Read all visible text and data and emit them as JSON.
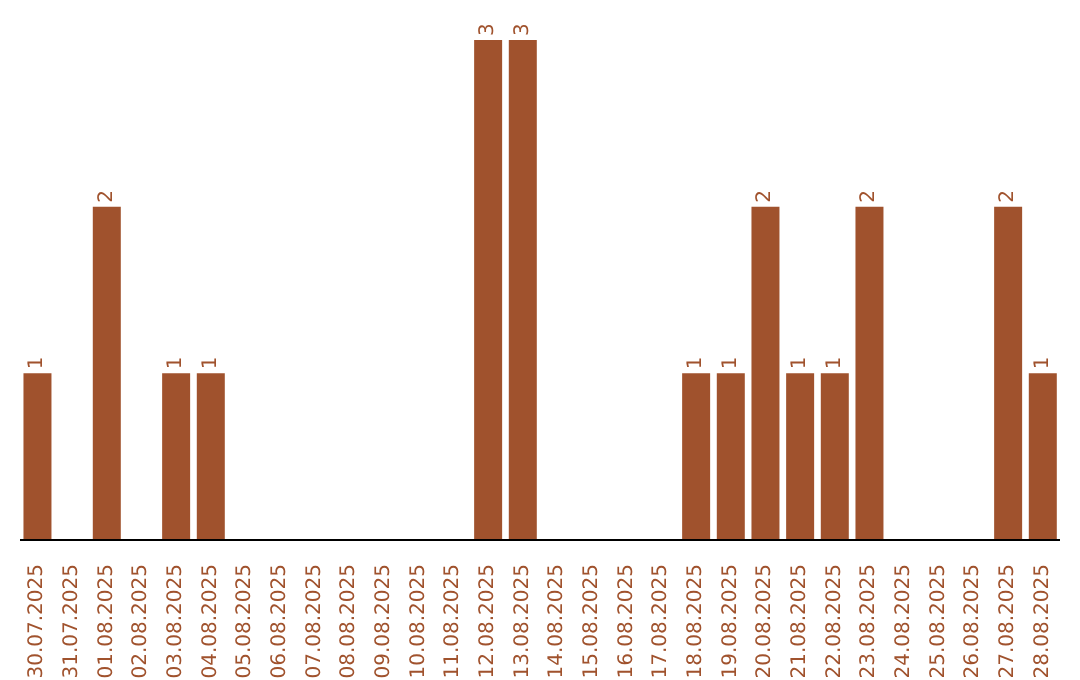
{
  "chart_data": {
    "type": "bar",
    "categories": [
      "30.07.2025",
      "31.07.2025",
      "01.08.2025",
      "02.08.2025",
      "03.08.2025",
      "04.08.2025",
      "05.08.2025",
      "06.08.2025",
      "07.08.2025",
      "08.08.2025",
      "09.08.2025",
      "10.08.2025",
      "11.08.2025",
      "12.08.2025",
      "13.08.2025",
      "14.08.2025",
      "15.08.2025",
      "16.08.2025",
      "17.08.2025",
      "18.08.2025",
      "19.08.2025",
      "20.08.2025",
      "21.08.2025",
      "22.08.2025",
      "23.08.2025",
      "24.08.2025",
      "25.08.2025",
      "26.08.2025",
      "27.08.2025",
      "28.08.2025"
    ],
    "values": [
      1,
      0,
      2,
      0,
      1,
      1,
      0,
      0,
      0,
      0,
      0,
      0,
      0,
      3,
      3,
      0,
      0,
      0,
      0,
      1,
      1,
      2,
      1,
      1,
      2,
      0,
      0,
      0,
      2,
      1
    ],
    "value_labels": [
      "1",
      null,
      "2",
      null,
      "1",
      "1",
      null,
      null,
      null,
      null,
      null,
      null,
      null,
      "3",
      "3",
      null,
      null,
      null,
      null,
      "1",
      "1",
      "2",
      "1",
      "1",
      "2",
      null,
      null,
      null,
      "2",
      "1"
    ],
    "color": "#a0522d",
    "grid": false,
    "legend": false
  }
}
